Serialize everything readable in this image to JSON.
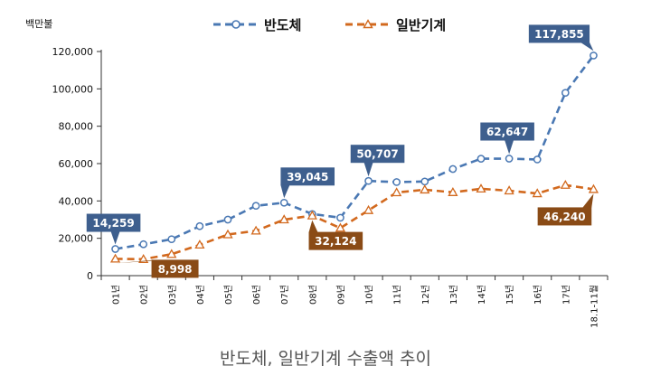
{
  "caption": "반도체, 일반기계 수출액 추이",
  "chart_data": {
    "type": "line",
    "unit_label": "백만불",
    "categories": [
      "01년",
      "02년",
      "03년",
      "04년",
      "05년",
      "06년",
      "07년",
      "08년",
      "09년",
      "10년",
      "11년",
      "12년",
      "13년",
      "14년",
      "15년",
      "16년",
      "17년",
      "18.1-11월"
    ],
    "ylim": [
      0,
      120000
    ],
    "yticks": [
      "0",
      "20,000",
      "40,000",
      "60,000",
      "80,000",
      "100,000",
      "120,000"
    ],
    "ytick_values": [
      0,
      20000,
      40000,
      60000,
      80000,
      100000,
      120000
    ],
    "legend_placement": "top-center",
    "series": [
      {
        "name": "반도체",
        "color": "#4a78b3",
        "marker": "circle",
        "values": [
          14259,
          16800,
          19500,
          26500,
          30000,
          37400,
          39045,
          33000,
          31000,
          50707,
          50100,
          50400,
          57100,
          62600,
          62647,
          62200,
          97900,
          117855
        ]
      },
      {
        "name": "일반기계",
        "color": "#d2691e",
        "marker": "triangle",
        "values": [
          8998,
          8800,
          11500,
          16500,
          22000,
          24000,
          30000,
          32124,
          25500,
          35000,
          44500,
          46000,
          44600,
          46500,
          45500,
          44000,
          48500,
          46240
        ]
      }
    ],
    "annotations": [
      {
        "series": 0,
        "index": 0,
        "text": "14,259",
        "color": "#3e5f8e"
      },
      {
        "series": 0,
        "index": 6,
        "text": "39,045",
        "color": "#3e5f8e"
      },
      {
        "series": 0,
        "index": 9,
        "text": "50,707",
        "color": "#3e5f8e"
      },
      {
        "series": 0,
        "index": 14,
        "text": "62,647",
        "color": "#3e5f8e"
      },
      {
        "series": 0,
        "index": 17,
        "text": "117,855",
        "color": "#3e5f8e"
      },
      {
        "series": 1,
        "index": 0,
        "text": "8,998",
        "color": "#8a4b16"
      },
      {
        "series": 1,
        "index": 7,
        "text": "32,124",
        "color": "#8a4b16"
      },
      {
        "series": 1,
        "index": 17,
        "text": "46,240",
        "color": "#8a4b16"
      }
    ]
  }
}
